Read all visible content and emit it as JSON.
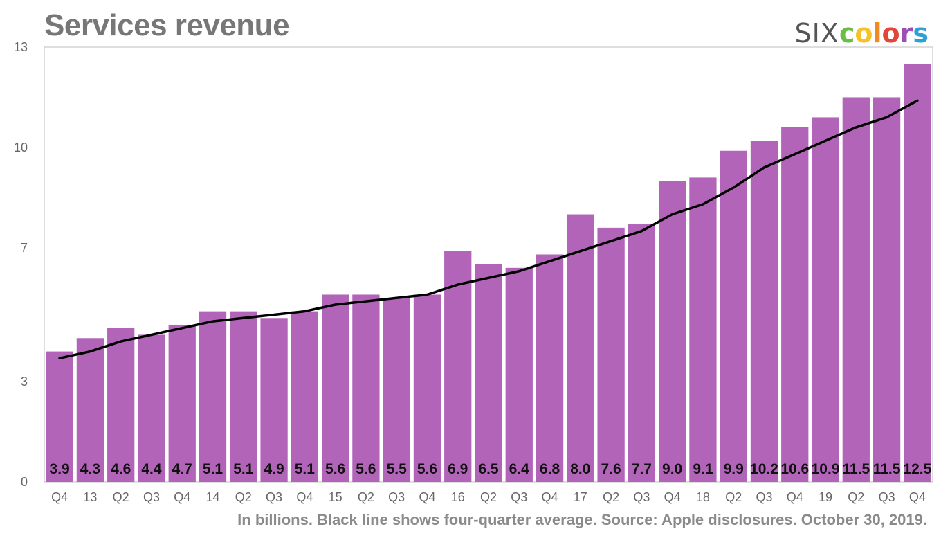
{
  "header": {
    "title": "Services revenue"
  },
  "logo": {
    "six": "SIX",
    "letters": [
      {
        "ch": "c",
        "color": "#6bbd45"
      },
      {
        "ch": "o",
        "color": "#f7c225"
      },
      {
        "ch": "l",
        "color": "#f08a24"
      },
      {
        "ch": "o",
        "color": "#e3453a"
      },
      {
        "ch": "r",
        "color": "#9b4fb5"
      },
      {
        "ch": "s",
        "color": "#2f9fd8"
      }
    ]
  },
  "footer": {
    "caption": "In billions. Black line shows four-quarter average. Source: Apple disclosures. October 30, 2019."
  },
  "chart_data": {
    "type": "bar",
    "title": "Services revenue",
    "xlabel": "",
    "ylabel": "",
    "ylim": [
      0,
      13
    ],
    "yticks": [
      0,
      3,
      7,
      10,
      13
    ],
    "grid": false,
    "bar_color": "#b264b9",
    "line_color": "#000000",
    "categories": [
      "Q4",
      "13",
      "Q2",
      "Q3",
      "Q4",
      "14",
      "Q2",
      "Q3",
      "Q4",
      "15",
      "Q2",
      "Q3",
      "Q4",
      "16",
      "Q2",
      "Q3",
      "Q4",
      "17",
      "Q2",
      "Q3",
      "Q4",
      "18",
      "Q2",
      "Q3",
      "Q4",
      "19",
      "Q2",
      "Q3",
      "Q4"
    ],
    "series": [
      {
        "type": "bar",
        "values": [
          3.9,
          4.3,
          4.6,
          4.4,
          4.7,
          5.1,
          5.1,
          4.9,
          5.1,
          5.6,
          5.6,
          5.5,
          5.6,
          6.9,
          6.5,
          6.4,
          6.8,
          8.0,
          7.6,
          7.7,
          9.0,
          9.1,
          9.9,
          10.2,
          10.6,
          10.9,
          11.5,
          11.5,
          12.5
        ]
      },
      {
        "type": "line",
        "values": [
          3.7,
          3.9,
          4.2,
          4.4,
          4.6,
          4.8,
          4.9,
          5.0,
          5.1,
          5.3,
          5.4,
          5.5,
          5.6,
          5.9,
          6.1,
          6.3,
          6.6,
          6.9,
          7.2,
          7.5,
          8.0,
          8.3,
          8.8,
          9.4,
          9.8,
          10.2,
          10.6,
          10.9,
          11.4
        ]
      }
    ]
  }
}
